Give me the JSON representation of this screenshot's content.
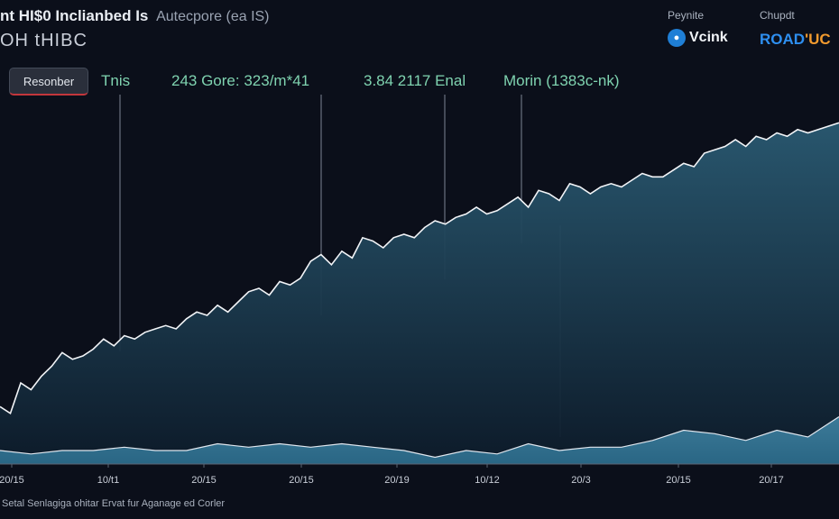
{
  "header": {
    "title": "nt HI$0 Inclianbed Is",
    "subtitle": "Autecpore (ea IS)",
    "code": "OH tHIBC"
  },
  "brands": {
    "a_caption": "Peynite",
    "a_name": "Vcink",
    "b_caption": "Chupdt",
    "b_name": "ROAD",
    "b_accent": "'UC"
  },
  "legend_button": {
    "label": "Resonber"
  },
  "annotations": [
    {
      "label": "Tnis",
      "x": "2016"
    },
    {
      "label": "243 Gore: 323/m*41",
      "x": "2017.6"
    },
    {
      "label": "3.84 2117 Enal",
      "x": "2018.9"
    },
    {
      "label": "Morin (1383c-nk)",
      "x": "2019.5"
    }
  ],
  "footer": {
    "text": "Setal Senlagiga ohitar Ervat fur Aganage ed Corler"
  },
  "colors": {
    "background": "#0b0f1a",
    "main_line": "#f2f4f7",
    "main_fill_top": "#2a5a72",
    "main_fill_bottom": "#0d1b2a",
    "lower_fill": "#3f7f9e",
    "annotation": "#7fd3b0",
    "guide_line": "#7c8594"
  },
  "chart_data": {
    "type": "area",
    "title": "",
    "xlabel": "",
    "ylabel": "",
    "x_ticks": [
      "20/15",
      "10/t1",
      "20/15",
      "20/15",
      "20/19",
      "10/12",
      "20/3",
      "20/15",
      "20/17"
    ],
    "x_range": [
      2014.8,
      2022.9
    ],
    "ylim": [
      0,
      100
    ],
    "grid": false,
    "series": [
      {
        "x": [
          2014.8,
          2014.9,
          2015.0,
          2015.1,
          2015.2,
          2015.3,
          2015.4,
          2015.5,
          2015.6,
          2015.7,
          2015.8,
          2015.9,
          2016.0,
          2016.1,
          2016.2,
          2016.3,
          2016.4,
          2016.5,
          2016.6,
          2016.7,
          2016.8,
          2016.9,
          2017.0,
          2017.1,
          2017.2,
          2017.3,
          2017.4,
          2017.5,
          2017.6,
          2017.7,
          2017.8,
          2017.9,
          2018.0,
          2018.1,
          2018.2,
          2018.3,
          2018.4,
          2018.5,
          2018.6,
          2018.7,
          2018.8,
          2018.9,
          2019.0,
          2019.1,
          2019.2,
          2019.3,
          2019.4,
          2019.5,
          2019.6,
          2019.7,
          2019.8,
          2019.9,
          2020.0,
          2020.1,
          2020.2,
          2020.3,
          2020.4,
          2020.5,
          2020.6,
          2020.7,
          2020.8,
          2020.9,
          2021.0,
          2021.1,
          2021.2,
          2021.3,
          2021.4,
          2021.5,
          2021.6,
          2021.7,
          2021.8,
          2021.9,
          2022.0,
          2022.1,
          2022.2,
          2022.3,
          2022.4,
          2022.5,
          2022.6,
          2022.7,
          2022.8,
          2022.9
        ],
        "values": [
          17,
          15,
          24,
          22,
          26,
          29,
          33,
          31,
          32,
          34,
          37,
          35,
          38,
          37,
          39,
          40,
          41,
          40,
          43,
          45,
          44,
          47,
          45,
          48,
          51,
          52,
          50,
          54,
          53,
          55,
          60,
          62,
          59,
          63,
          61,
          67,
          66,
          64,
          67,
          68,
          67,
          70,
          72,
          71,
          73,
          74,
          76,
          74,
          75,
          77,
          79,
          76,
          81,
          80,
          78,
          83,
          82,
          80,
          82,
          83,
          82,
          84,
          86,
          85,
          85,
          87,
          89,
          88,
          92,
          93,
          94,
          96,
          94,
          97,
          96,
          98,
          97,
          99,
          98,
          99,
          100,
          101
        ]
      },
      {
        "x": [
          2014.8,
          2015.1,
          2015.4,
          2015.7,
          2016.0,
          2016.3,
          2016.6,
          2016.9,
          2017.2,
          2017.5,
          2017.8,
          2018.1,
          2018.4,
          2018.7,
          2019.0,
          2019.3,
          2019.6,
          2019.9,
          2020.2,
          2020.5,
          2020.8,
          2021.1,
          2021.4,
          2021.7,
          2022.0,
          2022.3,
          2022.6,
          2022.9
        ],
        "values": [
          4,
          3,
          4,
          4,
          5,
          4,
          4,
          6,
          5,
          6,
          5,
          6,
          5,
          4,
          2,
          4,
          3,
          6,
          4,
          5,
          5,
          7,
          10,
          9,
          7,
          10,
          8,
          14
        ]
      }
    ]
  }
}
